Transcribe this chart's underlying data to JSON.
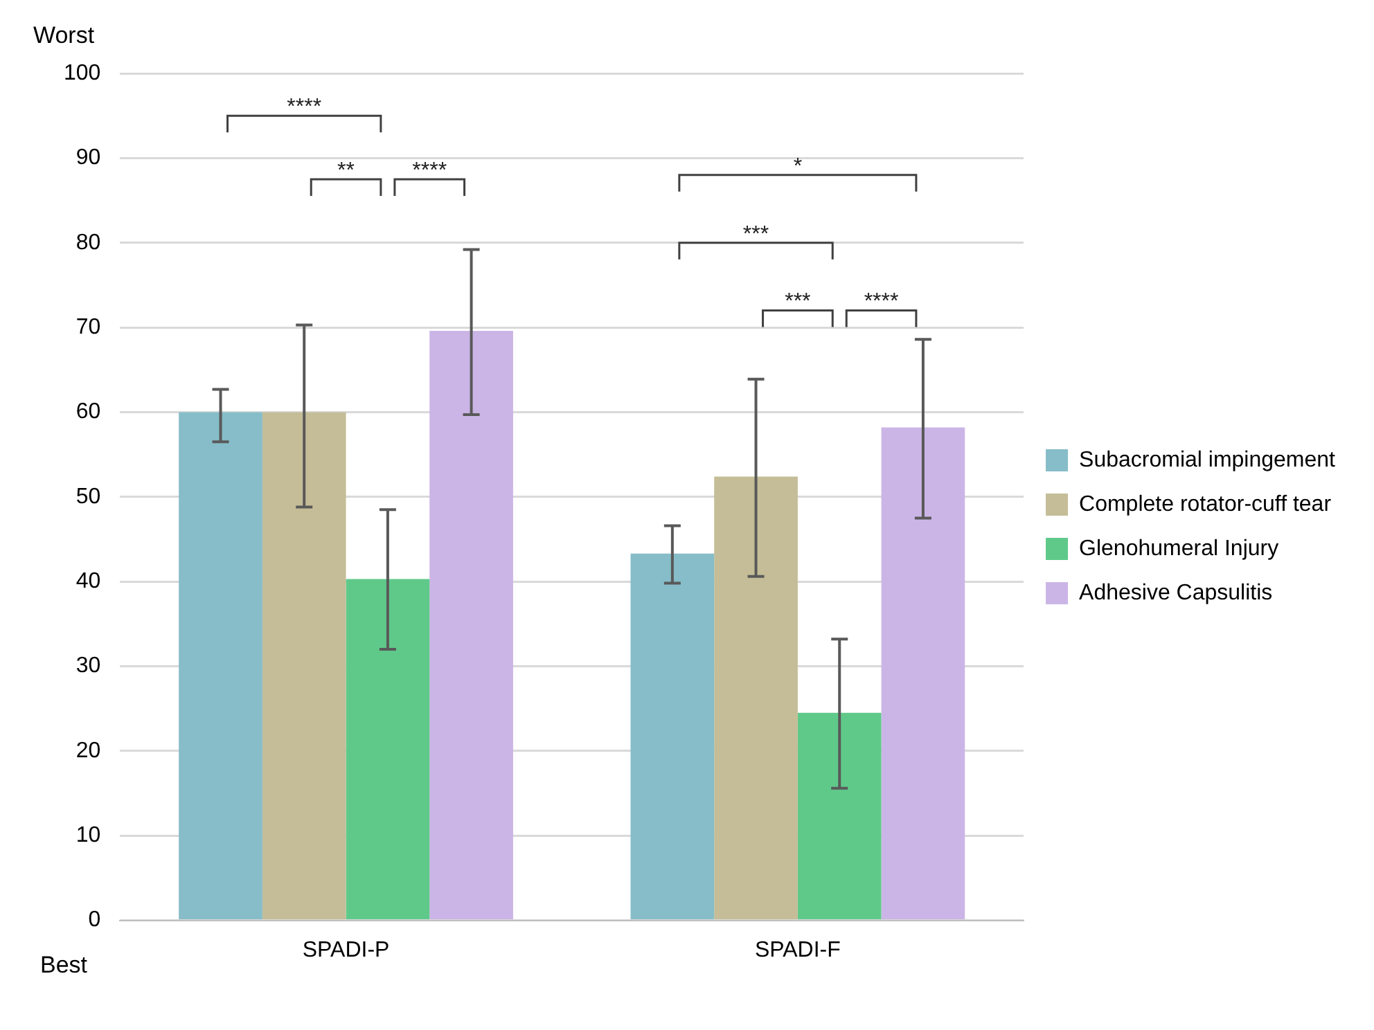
{
  "chart_data": {
    "type": "bar",
    "categories": [
      "SPADI-P",
      "SPADI-F"
    ],
    "series": [
      {
        "name": "Subacromial impingement",
        "color": "#86bdc8",
        "values": [
          60,
          43.3
        ],
        "errors": [
          [
            56.5,
            62.7
          ],
          [
            39.8,
            46.6
          ]
        ]
      },
      {
        "name": "Complete rotator-cuff tear",
        "color": "#c4bd97",
        "values": [
          60,
          52.4
        ],
        "errors": [
          [
            48.8,
            70.3
          ],
          [
            40.6,
            63.9
          ]
        ]
      },
      {
        "name": "Glenohumeral Injury",
        "color": "#5fc98a",
        "values": [
          40.3,
          24.5
        ],
        "errors": [
          [
            32,
            48.5
          ],
          [
            15.6,
            33.2
          ]
        ]
      },
      {
        "name": "Adhesive Capsulitis",
        "color": "#cbb5e6",
        "values": [
          69.6,
          58.2
        ],
        "errors": [
          [
            59.7,
            79.2
          ],
          [
            47.5,
            68.6
          ]
        ]
      }
    ],
    "ylim": [
      0,
      100
    ],
    "yticks": [
      0,
      10,
      20,
      30,
      40,
      50,
      60,
      70,
      80,
      90,
      100
    ],
    "grid": "y",
    "legend": "right",
    "annotations": [
      "Worst",
      "Best",
      "****",
      "**",
      "****",
      "*",
      "***",
      "***",
      "****"
    ]
  }
}
